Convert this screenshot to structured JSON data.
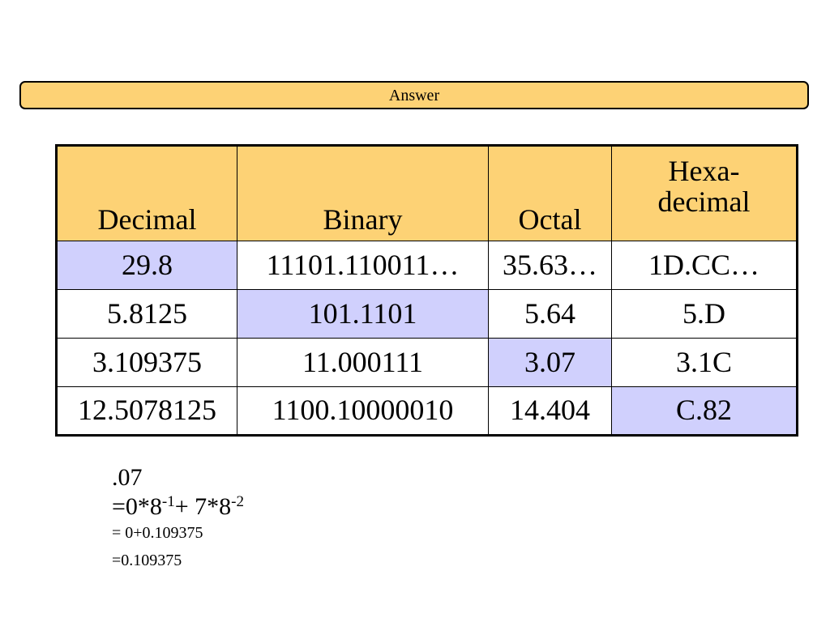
{
  "header": {
    "title": "Answer"
  },
  "table": {
    "headers": {
      "decimal": "Decimal",
      "binary": "Binary",
      "octal": "Octal",
      "hex_line1": "Hexa-",
      "hex_line2": "decimal"
    },
    "rows": [
      {
        "decimal": "29.8",
        "binary": "11101.110011…",
        "octal": "35.63…",
        "hex": "1D.CC…",
        "highlight": "decimal"
      },
      {
        "decimal": "5.8125",
        "binary": "101.1101",
        "octal": "5.64",
        "hex": "5.D",
        "highlight": "binary"
      },
      {
        "decimal": "3.109375",
        "binary": "11.000111",
        "octal": "3.07",
        "hex": "3.1C",
        "highlight": "octal"
      },
      {
        "decimal": "12.5078125",
        "binary": "1100.10000010",
        "octal": "14.404",
        "hex": "C.82",
        "highlight": "hex"
      }
    ],
    "colors": {
      "header_bg": "#fdd275",
      "highlight_bg": "#d0d0fd"
    }
  },
  "work": {
    "line1": ".07",
    "line2": {
      "a": "=0*8",
      "exp1": "-1",
      "b": "+ 7*8",
      "exp2": "-2"
    },
    "line3": "= 0+0.109375",
    "line4": "=0.109375"
  }
}
